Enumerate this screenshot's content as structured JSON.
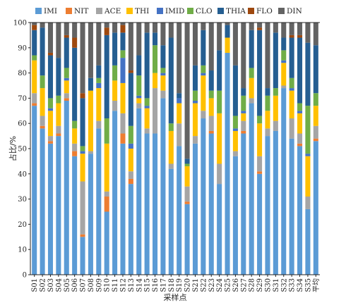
{
  "chart_data": {
    "type": "bar",
    "stacked": true,
    "title": "",
    "xlabel": "采样点",
    "ylabel": "占比/%",
    "ylim": [
      0,
      100
    ],
    "yticks": [
      0,
      10,
      20,
      30,
      40,
      50,
      60,
      70,
      80,
      90,
      100
    ],
    "grid": false,
    "legend_position": "top",
    "categories": [
      "S01",
      "S02",
      "S03",
      "S04",
      "S05",
      "S06",
      "S07",
      "S08",
      "S09",
      "S10",
      "S11",
      "S12",
      "S13",
      "S14",
      "S15",
      "S16",
      "S17",
      "S18",
      "S19",
      "S20",
      "S21",
      "S22",
      "S23",
      "S24",
      "S25",
      "S26",
      "S27",
      "S28",
      "S29",
      "S30",
      "S31",
      "S32",
      "S33",
      "S34",
      "S35",
      "平均"
    ],
    "series": [
      {
        "name": "IMI",
        "color": "#5b9bd5",
        "values": [
          67,
          58,
          52,
          55,
          69,
          47,
          15,
          48,
          58,
          25,
          65,
          52,
          36,
          66,
          56,
          56,
          70,
          42,
          51,
          28,
          52,
          62,
          56,
          36,
          88,
          47,
          56,
          68,
          40,
          55,
          57,
          74,
          54,
          51,
          26,
          53
        ]
      },
      {
        "name": "NIT",
        "color": "#ed7d31",
        "values": [
          1,
          1,
          1,
          1,
          1,
          2,
          1,
          0,
          0,
          6,
          0,
          4,
          2,
          0,
          0,
          0,
          0,
          0,
          0,
          1,
          0,
          0,
          1,
          0,
          0,
          0,
          1,
          0,
          1,
          0,
          0,
          0,
          0,
          1,
          0,
          1
        ]
      },
      {
        "name": "ACE",
        "color": "#a5a5a5",
        "values": [
          4,
          4,
          2,
          3,
          2,
          3,
          21,
          1,
          3,
          2,
          4,
          8,
          3,
          2,
          2,
          18,
          3,
          2,
          9,
          6,
          3,
          3,
          6,
          8,
          0,
          2,
          4,
          2,
          6,
          3,
          4,
          1,
          8,
          4,
          5,
          5
        ]
      },
      {
        "name": "THI",
        "color": "#ffc000",
        "values": [
          13,
          11,
          10,
          9,
          5,
          6,
          11,
          24,
          13,
          19,
          8,
          12,
          9,
          2,
          8,
          6,
          6,
          13,
          8,
          8,
          13,
          14,
          7,
          20,
          6,
          8,
          3,
          8,
          13,
          7,
          10,
          9,
          11,
          8,
          16,
          8
        ]
      },
      {
        "name": "IMID",
        "color": "#4472c4",
        "values": [
          0,
          0,
          1,
          0,
          1,
          0,
          1,
          0,
          2,
          0,
          0,
          10,
          2,
          1,
          1,
          0,
          1,
          0,
          2,
          0,
          1,
          1,
          0,
          0,
          0,
          1,
          1,
          0,
          0,
          0,
          0,
          1,
          1,
          1,
          1,
          0
        ]
      },
      {
        "name": "CLO",
        "color": "#70ad47",
        "values": [
          2,
          5,
          4,
          3,
          4,
          3,
          2,
          0,
          2,
          10,
          6,
          3,
          7,
          8,
          3,
          11,
          2,
          3,
          0,
          1,
          4,
          3,
          3,
          9,
          0,
          5,
          6,
          4,
          3,
          6,
          3,
          4,
          4,
          3,
          19,
          5
        ]
      },
      {
        "name": "THIA",
        "color": "#255e91",
        "values": [
          10,
          19,
          17,
          15,
          12,
          29,
          19,
          5,
          5,
          33,
          13,
          7,
          21,
          8,
          26,
          5,
          9,
          34,
          2,
          2,
          10,
          14,
          8,
          16,
          5,
          20,
          3,
          15,
          34,
          3,
          22,
          5,
          16,
          26,
          25,
          19
        ]
      },
      {
        "name": "FLO",
        "color": "#9e480e",
        "values": [
          2,
          0,
          1,
          0,
          1,
          4,
          2,
          0,
          0,
          3,
          0,
          3,
          1,
          0,
          0,
          0,
          0,
          0,
          0,
          0,
          0,
          0,
          0,
          0,
          0,
          0,
          0,
          0,
          1,
          0,
          0,
          0,
          1,
          1,
          0,
          0
        ]
      },
      {
        "name": "DIN",
        "color": "#636363",
        "values": [
          1,
          2,
          12,
          14,
          5,
          6,
          28,
          22,
          17,
          2,
          4,
          1,
          19,
          13,
          4,
          4,
          9,
          6,
          28,
          54,
          17,
          3,
          19,
          11,
          1,
          17,
          26,
          3,
          2,
          26,
          4,
          6,
          5,
          5,
          8,
          9
        ]
      }
    ]
  }
}
